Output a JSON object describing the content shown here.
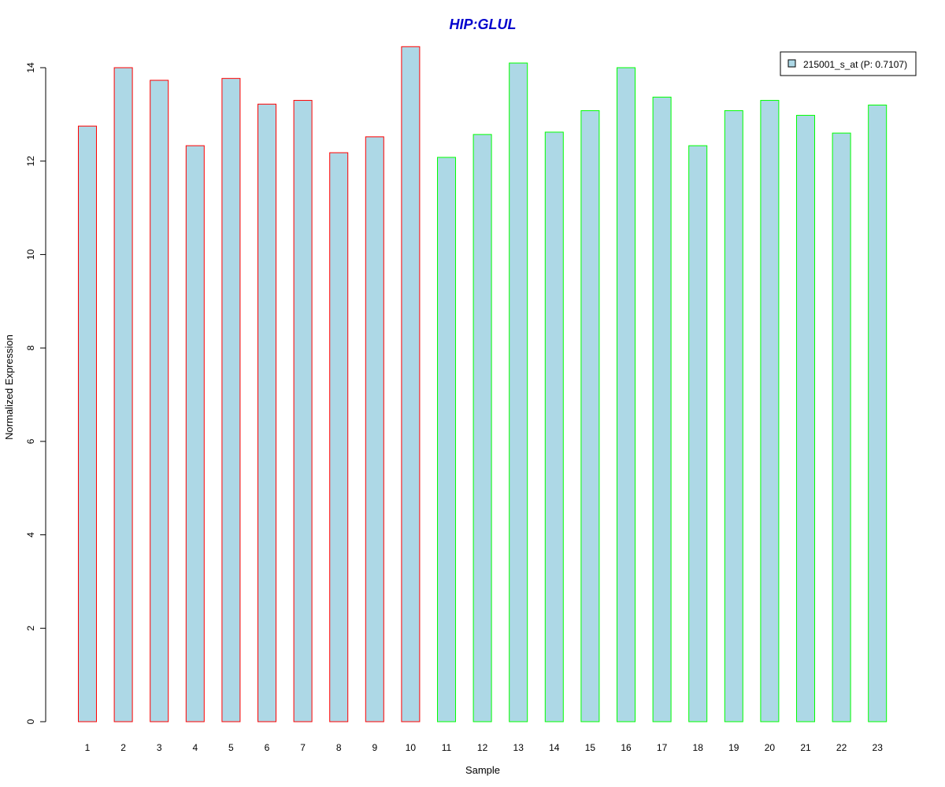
{
  "chart_data": {
    "type": "bar",
    "title": "HIP:GLUL",
    "xlabel": "Sample",
    "ylabel": "Normalized Expression",
    "ylim": [
      0,
      14.2
    ],
    "yticks": [
      0,
      2,
      4,
      6,
      8,
      10,
      12,
      14
    ],
    "grid": false,
    "legend_position": "top-right",
    "categories": [
      "1",
      "2",
      "3",
      "4",
      "5",
      "6",
      "7",
      "8",
      "9",
      "10",
      "11",
      "12",
      "13",
      "14",
      "15",
      "16",
      "17",
      "18",
      "19",
      "20",
      "21",
      "22",
      "23"
    ],
    "series": [
      {
        "name": "215001_s_at (P: 0.7107)",
        "values": [
          12.75,
          14.0,
          13.73,
          12.33,
          13.77,
          13.22,
          13.3,
          12.18,
          12.52,
          14.45,
          12.08,
          12.57,
          14.1,
          12.62,
          13.08,
          14.0,
          13.37,
          12.33,
          13.08,
          13.3,
          12.98,
          12.6,
          13.2
        ],
        "group": [
          "A",
          "A",
          "A",
          "A",
          "A",
          "A",
          "A",
          "A",
          "A",
          "A",
          "B",
          "B",
          "B",
          "B",
          "B",
          "B",
          "B",
          "B",
          "B",
          "B",
          "B",
          "B",
          "B"
        ]
      }
    ],
    "colors": {
      "bar_fill": "#add8e6",
      "group_A_border": "#ff0000",
      "group_B_border": "#00ff00",
      "title": "#0000cd"
    }
  }
}
